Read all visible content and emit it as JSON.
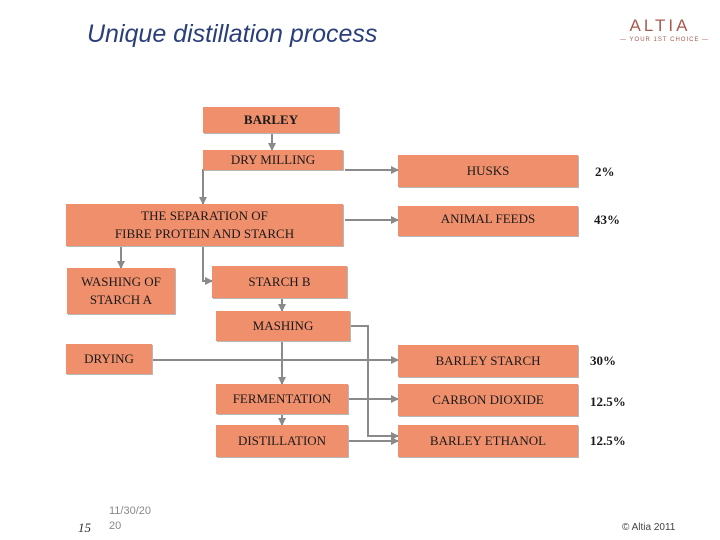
{
  "slide": {
    "title": "Unique distillation process",
    "logo": {
      "word": "ALTIA",
      "tagline": "— YOUR 1ST CHOICE —"
    },
    "footer": {
      "page_number": "15",
      "date_line1": "11/30/20",
      "date_line2": "20",
      "copyright": "© Altia 2011"
    }
  },
  "flow": {
    "barley": "BARLEY",
    "dry_milling": "DRY MILLING",
    "separation_line1": "THE SEPARATION OF",
    "separation_line2": "FIBRE PROTEIN AND STARCH",
    "washing_line1": "WASHING OF",
    "washing_line2": "STARCH A",
    "starch_b": "STARCH B",
    "mashing": "MASHING",
    "drying": "DRYING",
    "fermentation": "FERMENTATION",
    "distillation": "DISTILLATION"
  },
  "outputs": [
    {
      "name": "HUSKS",
      "pct": "2%"
    },
    {
      "name": "ANIMAL FEEDS",
      "pct": "43%"
    },
    {
      "name": "BARLEY STARCH",
      "pct": "30%"
    },
    {
      "name": "CARBON DIOXIDE",
      "pct": "12.5%"
    },
    {
      "name": "BARLEY ETHANOL",
      "pct": "12.5%"
    }
  ],
  "colors": {
    "box_fill": "#f08f6c",
    "title": "#2a3f7a",
    "logo": "#a85a4e",
    "arrow": "#8a8a8a"
  }
}
